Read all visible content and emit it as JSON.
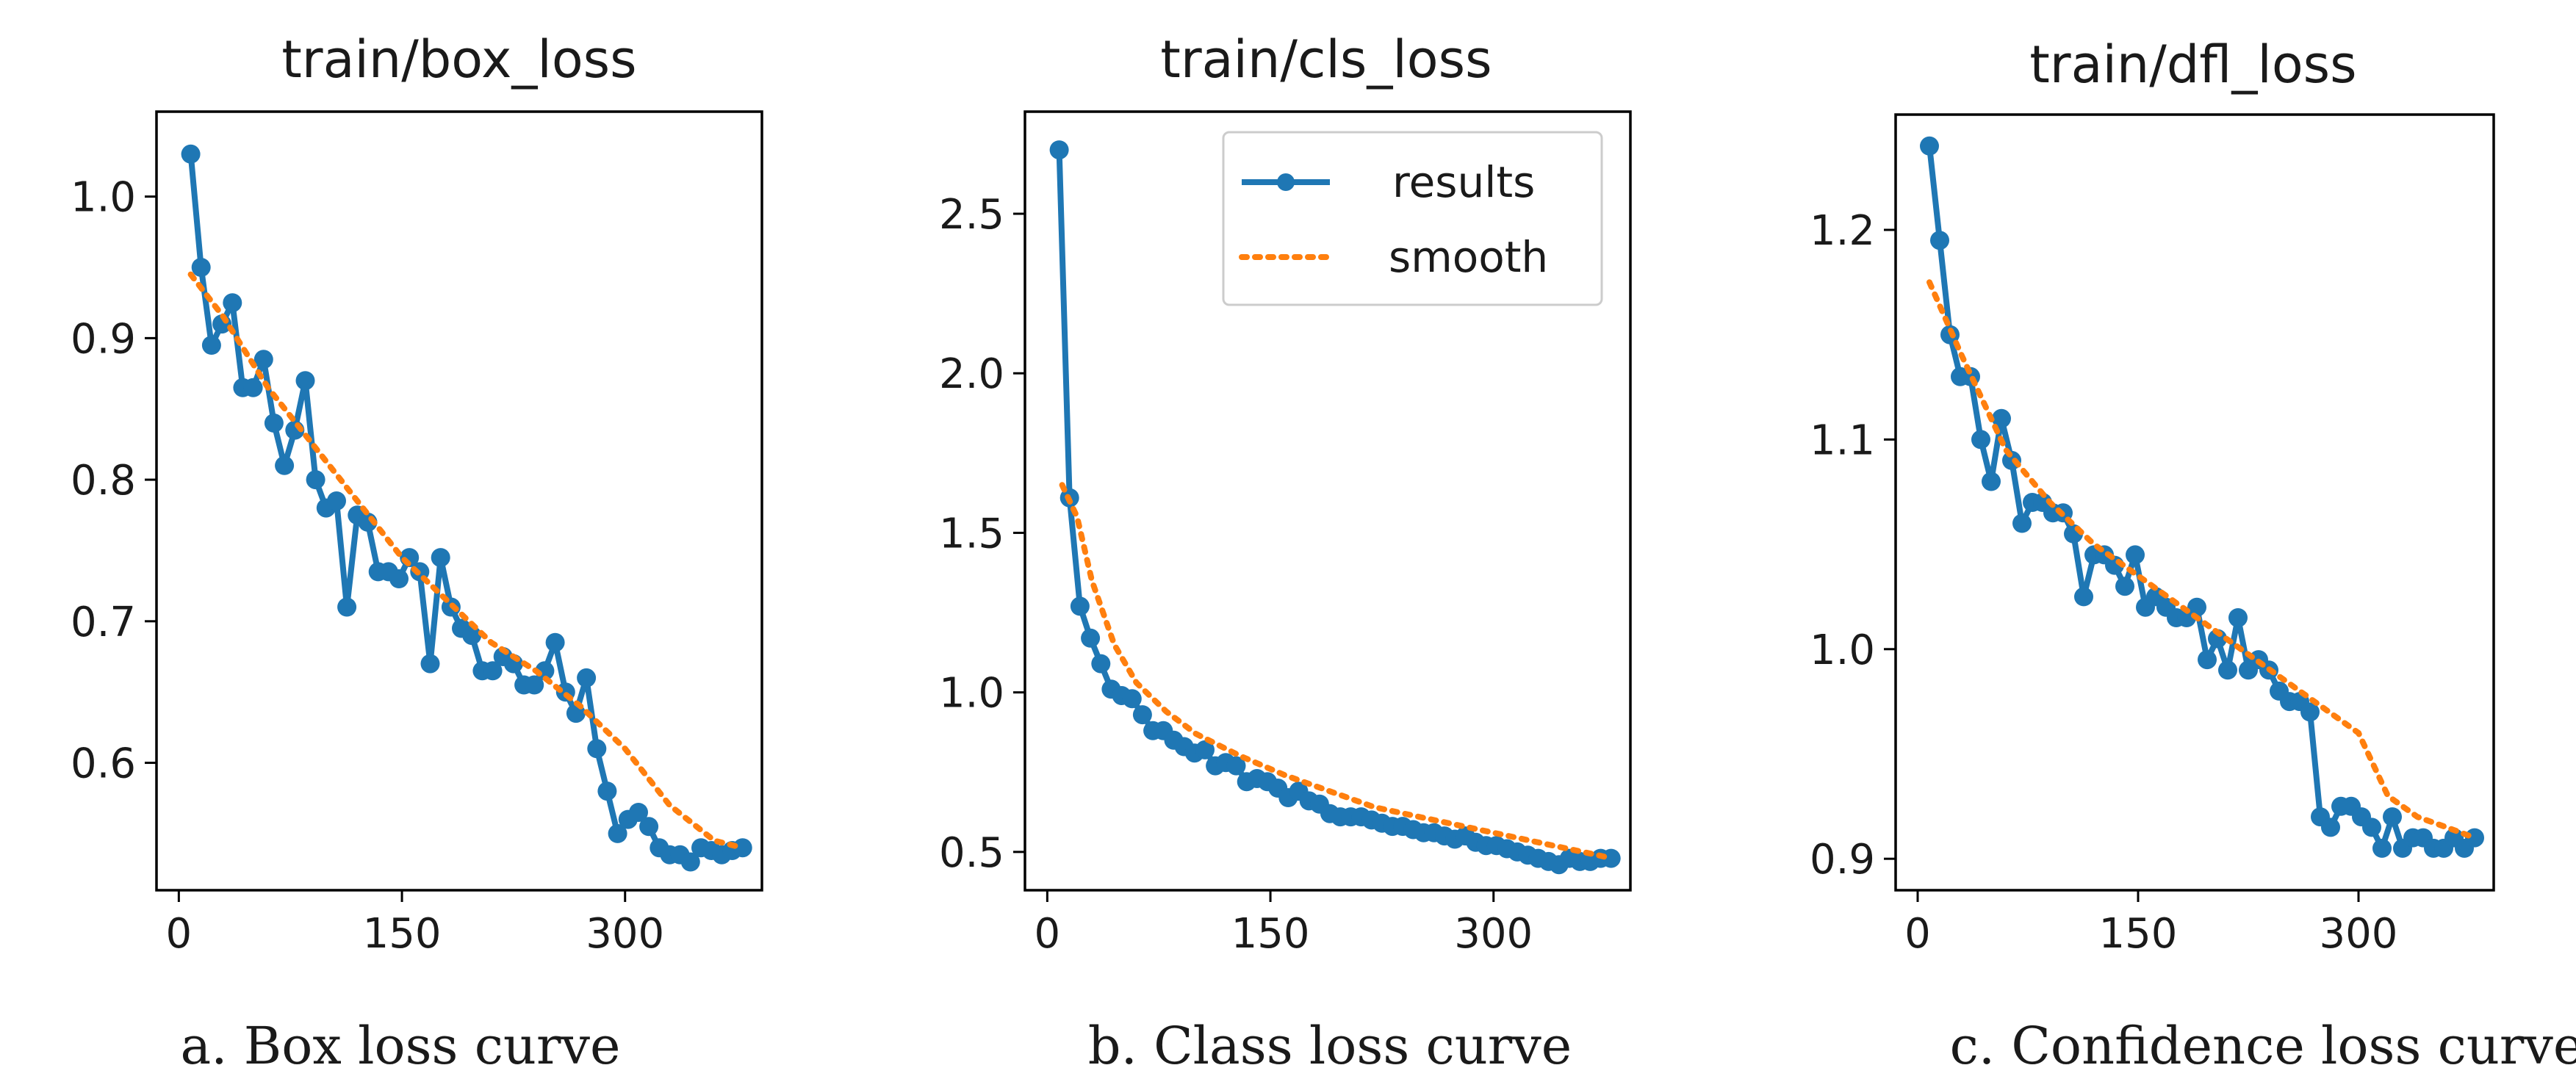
{
  "colors": {
    "results": "#1f77b4",
    "smooth": "#ff7f0e"
  },
  "chart_data": [
    {
      "type": "line",
      "title": "train/box_loss",
      "caption": "a. Box loss curve",
      "xlabel": "",
      "ylabel": "",
      "xlim": [
        -15,
        392
      ],
      "ylim": [
        0.51,
        1.06
      ],
      "xticks": [
        0,
        150,
        300
      ],
      "xtick_labels": [
        "0",
        "150",
        "300"
      ],
      "yticks": [
        0.6,
        0.7,
        0.8,
        0.9,
        1.0
      ],
      "ytick_labels": [
        "0.6",
        "0.7",
        "0.8",
        "0.9",
        "1.0"
      ],
      "show_legend": false,
      "series": [
        {
          "name": "results",
          "x": [
            8,
            15,
            22,
            29,
            36,
            43,
            50,
            57,
            64,
            71,
            78,
            85,
            92,
            99,
            106,
            113,
            120,
            127,
            134,
            141,
            148,
            155,
            162,
            169,
            176,
            183,
            190,
            197,
            204,
            211,
            218,
            225,
            232,
            239,
            246,
            253,
            260,
            267,
            274,
            281,
            288,
            295,
            302,
            309,
            316,
            323,
            330,
            337,
            344,
            351,
            358,
            365,
            372,
            379
          ],
          "y": [
            1.03,
            0.95,
            0.895,
            0.91,
            0.925,
            0.865,
            0.865,
            0.885,
            0.84,
            0.81,
            0.835,
            0.87,
            0.8,
            0.78,
            0.785,
            0.71,
            0.775,
            0.77,
            0.735,
            0.735,
            0.73,
            0.745,
            0.735,
            0.67,
            0.745,
            0.71,
            0.695,
            0.69,
            0.665,
            0.665,
            0.675,
            0.67,
            0.655,
            0.655,
            0.665,
            0.685,
            0.65,
            0.635,
            0.66,
            0.61,
            0.58,
            0.55,
            0.56,
            0.565,
            0.555,
            0.54,
            0.535,
            0.535,
            0.53,
            0.54,
            0.538,
            0.535,
            0.538,
            0.54
          ]
        },
        {
          "name": "smooth",
          "x": [
            8,
            30,
            60,
            90,
            120,
            150,
            180,
            210,
            240,
            270,
            300,
            330,
            360,
            379
          ],
          "y": [
            0.945,
            0.915,
            0.865,
            0.825,
            0.785,
            0.745,
            0.715,
            0.685,
            0.665,
            0.64,
            0.61,
            0.57,
            0.545,
            0.54
          ]
        }
      ]
    },
    {
      "type": "line",
      "title": "train/cls_loss",
      "caption": "b. Class loss curve",
      "xlabel": "",
      "ylabel": "",
      "xlim": [
        -15,
        392
      ],
      "ylim": [
        0.38,
        2.82
      ],
      "xticks": [
        0,
        150,
        300
      ],
      "xtick_labels": [
        "0",
        "150",
        "300"
      ],
      "yticks": [
        0.5,
        1.0,
        1.5,
        2.0,
        2.5
      ],
      "ytick_labels": [
        "0.5",
        "1.0",
        "1.5",
        "2.0",
        "2.5"
      ],
      "show_legend": true,
      "legend_position": "top-right",
      "legend": [
        "results",
        "smooth"
      ],
      "series": [
        {
          "name": "results",
          "x": [
            8,
            15,
            22,
            29,
            36,
            43,
            50,
            57,
            64,
            71,
            78,
            85,
            92,
            99,
            106,
            113,
            120,
            127,
            134,
            141,
            148,
            155,
            162,
            169,
            176,
            183,
            190,
            197,
            204,
            211,
            218,
            225,
            232,
            239,
            246,
            253,
            260,
            267,
            274,
            281,
            288,
            295,
            302,
            309,
            316,
            323,
            330,
            337,
            344,
            351,
            358,
            365,
            372,
            379
          ],
          "y": [
            2.7,
            1.61,
            1.27,
            1.17,
            1.09,
            1.01,
            0.99,
            0.98,
            0.93,
            0.88,
            0.88,
            0.85,
            0.83,
            0.81,
            0.82,
            0.77,
            0.78,
            0.77,
            0.72,
            0.73,
            0.72,
            0.7,
            0.67,
            0.69,
            0.66,
            0.65,
            0.62,
            0.61,
            0.61,
            0.61,
            0.6,
            0.59,
            0.58,
            0.58,
            0.57,
            0.56,
            0.56,
            0.55,
            0.54,
            0.55,
            0.53,
            0.52,
            0.52,
            0.51,
            0.5,
            0.49,
            0.48,
            0.47,
            0.46,
            0.48,
            0.47,
            0.47,
            0.48,
            0.48
          ]
        },
        {
          "name": "smooth",
          "x": [
            10,
            20,
            30,
            45,
            60,
            80,
            100,
            130,
            160,
            190,
            220,
            250,
            280,
            310,
            340,
            370,
            379
          ],
          "y": [
            1.65,
            1.55,
            1.35,
            1.15,
            1.03,
            0.94,
            0.87,
            0.8,
            0.74,
            0.69,
            0.64,
            0.61,
            0.58,
            0.55,
            0.52,
            0.49,
            0.48
          ]
        }
      ]
    },
    {
      "type": "line",
      "title": "train/dfl_loss",
      "caption": "c. Confidence loss curve",
      "xlabel": "",
      "ylabel": "",
      "xlim": [
        -15,
        392
      ],
      "ylim": [
        0.885,
        1.255
      ],
      "xticks": [
        0,
        150,
        300
      ],
      "xtick_labels": [
        "0",
        "150",
        "300"
      ],
      "yticks": [
        0.9,
        1.0,
        1.1,
        1.2
      ],
      "ytick_labels": [
        "0.9",
        "1.0",
        "1.1",
        "1.2"
      ],
      "show_legend": false,
      "series": [
        {
          "name": "results",
          "x": [
            8,
            15,
            22,
            29,
            36,
            43,
            50,
            57,
            64,
            71,
            78,
            85,
            92,
            99,
            106,
            113,
            120,
            127,
            134,
            141,
            148,
            155,
            162,
            169,
            176,
            183,
            190,
            197,
            204,
            211,
            218,
            225,
            232,
            239,
            246,
            253,
            260,
            267,
            274,
            281,
            288,
            295,
            302,
            309,
            316,
            323,
            330,
            337,
            344,
            351,
            358,
            365,
            372,
            379
          ],
          "y": [
            1.24,
            1.195,
            1.15,
            1.13,
            1.13,
            1.1,
            1.08,
            1.11,
            1.09,
            1.06,
            1.07,
            1.07,
            1.065,
            1.065,
            1.055,
            1.025,
            1.045,
            1.045,
            1.04,
            1.03,
            1.045,
            1.02,
            1.025,
            1.02,
            1.015,
            1.015,
            1.02,
            0.995,
            1.005,
            0.99,
            1.015,
            0.99,
            0.995,
            0.99,
            0.98,
            0.975,
            0.975,
            0.97,
            0.92,
            0.915,
            0.925,
            0.925,
            0.92,
            0.915,
            0.905,
            0.92,
            0.905,
            0.91,
            0.91,
            0.905,
            0.905,
            0.91,
            0.905,
            0.91
          ]
        },
        {
          "name": "smooth",
          "x": [
            8,
            30,
            60,
            90,
            120,
            150,
            180,
            210,
            240,
            270,
            300,
            320,
            340,
            360,
            379
          ],
          "y": [
            1.175,
            1.14,
            1.095,
            1.07,
            1.05,
            1.035,
            1.02,
            1.005,
            0.99,
            0.975,
            0.96,
            0.93,
            0.92,
            0.915,
            0.91
          ]
        }
      ]
    }
  ]
}
